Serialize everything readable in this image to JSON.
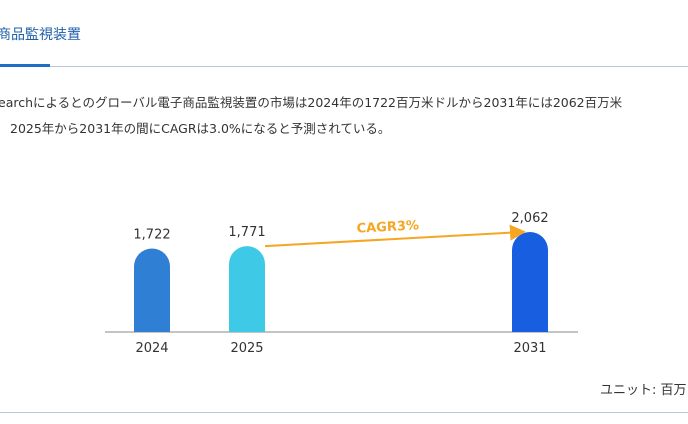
{
  "header": {
    "title": "商品監視装置"
  },
  "body": {
    "lines": [
      "earchによるとのグローバル電子商品監視装置の市場は2024年の1722百万米ドルから2031年には2062百万米",
      "2025年から2031年の間にCAGRは3.0%になると予測されている。"
    ]
  },
  "chart_data": {
    "type": "bar",
    "categories": [
      "2024",
      "2025",
      "2031"
    ],
    "values": [
      1722,
      1771,
      2062
    ],
    "value_labels": [
      "1,722",
      "1,771",
      "2,062"
    ],
    "colors": [
      "#2f7fd4",
      "#3ec9e6",
      "#175fe0"
    ],
    "annotation": "CAGR3%"
  },
  "footer": {
    "unit": "ユニット: 百万"
  }
}
